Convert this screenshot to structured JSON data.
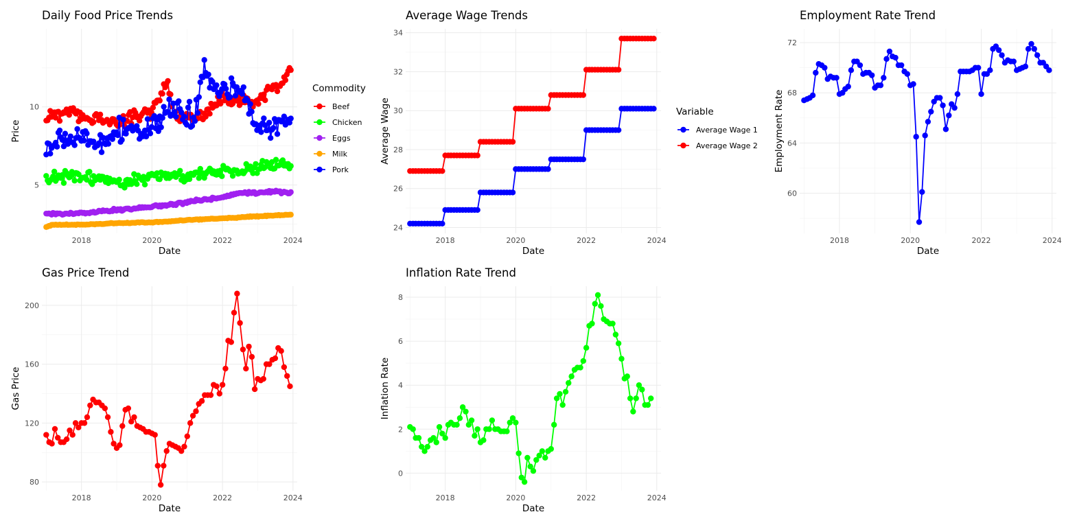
{
  "chart_data": [
    {
      "id": "food",
      "type": "line",
      "title": "Daily Food Price Trends",
      "xlabel": "Date",
      "ylabel": "Price",
      "x_axis": "date",
      "xlim": [
        "2016-11-17",
        "2024-02-14"
      ],
      "ylim": [
        1.9,
        15.0
      ],
      "xticks": [
        "2018",
        "2020",
        "2022",
        "2024"
      ],
      "yticks": [
        5,
        10
      ],
      "grid": true,
      "legend": {
        "title": "Commodity",
        "position": "right"
      },
      "series": [
        {
          "name": "Beef",
          "color": "#ff0000",
          "anchors": [
            [
              "2017-01-01",
              9.2
            ],
            [
              "2017-04-01",
              9.6
            ],
            [
              "2017-07-01",
              9.4
            ],
            [
              "2017-10-01",
              9.9
            ],
            [
              "2018-01-01",
              9.3
            ],
            [
              "2018-04-01",
              9.1
            ],
            [
              "2018-07-01",
              9.4
            ],
            [
              "2018-10-01",
              9.0
            ],
            [
              "2019-01-01",
              9.0
            ],
            [
              "2019-04-01",
              9.2
            ],
            [
              "2019-07-01",
              9.4
            ],
            [
              "2019-10-01",
              9.6
            ],
            [
              "2020-01-01",
              9.8
            ],
            [
              "2020-04-01",
              10.6
            ],
            [
              "2020-06-01",
              11.8
            ],
            [
              "2020-08-01",
              10.0
            ],
            [
              "2020-10-01",
              9.3
            ],
            [
              "2021-01-01",
              9.4
            ],
            [
              "2021-04-01",
              9.3
            ],
            [
              "2021-07-01",
              9.5
            ],
            [
              "2021-10-01",
              10.0
            ],
            [
              "2022-01-01",
              10.5
            ],
            [
              "2022-04-01",
              10.2
            ],
            [
              "2022-07-01",
              10.6
            ],
            [
              "2022-10-01",
              10.3
            ],
            [
              "2023-01-01",
              10.4
            ],
            [
              "2023-04-01",
              10.9
            ],
            [
              "2023-07-01",
              11.2
            ],
            [
              "2023-10-01",
              11.6
            ],
            [
              "2023-12-15",
              12.7
            ]
          ],
          "noise": 0.28,
          "seed": 11
        },
        {
          "name": "Chicken",
          "color": "#00ff00",
          "anchors": [
            [
              "2017-01-01",
              5.2
            ],
            [
              "2017-07-01",
              5.6
            ],
            [
              "2018-01-01",
              5.5
            ],
            [
              "2018-07-01",
              5.4
            ],
            [
              "2019-01-01",
              5.3
            ],
            [
              "2019-07-01",
              5.3
            ],
            [
              "2020-01-01",
              5.5
            ],
            [
              "2020-07-01",
              5.6
            ],
            [
              "2021-01-01",
              5.6
            ],
            [
              "2021-07-01",
              5.8
            ],
            [
              "2022-01-01",
              5.9
            ],
            [
              "2022-07-01",
              5.9
            ],
            [
              "2023-01-01",
              6.2
            ],
            [
              "2023-07-01",
              6.4
            ],
            [
              "2023-12-15",
              6.3
            ]
          ],
          "noise": 0.28,
          "seed": 23
        },
        {
          "name": "Eggs",
          "color": "#a020f0",
          "anchors": [
            [
              "2017-01-01",
              3.1
            ],
            [
              "2018-01-01",
              3.2
            ],
            [
              "2019-01-01",
              3.4
            ],
            [
              "2020-01-01",
              3.6
            ],
            [
              "2021-01-01",
              3.9
            ],
            [
              "2022-01-01",
              4.2
            ],
            [
              "2022-07-01",
              4.5
            ],
            [
              "2023-01-01",
              4.5
            ],
            [
              "2023-07-01",
              4.6
            ],
            [
              "2023-12-15",
              4.5
            ]
          ],
          "noise": 0.06,
          "seed": 37
        },
        {
          "name": "Milk",
          "color": "#ffa500",
          "anchors": [
            [
              "2017-01-01",
              2.3
            ],
            [
              "2017-03-01",
              2.45
            ],
            [
              "2018-01-01",
              2.45
            ],
            [
              "2019-01-01",
              2.55
            ],
            [
              "2020-01-01",
              2.6
            ],
            [
              "2021-01-01",
              2.75
            ],
            [
              "2022-01-01",
              2.85
            ],
            [
              "2023-01-01",
              3.0
            ],
            [
              "2023-12-15",
              3.1
            ]
          ],
          "noise": 0.02,
          "seed": 41
        },
        {
          "name": "Pork",
          "color": "#0000ff",
          "anchors": [
            [
              "2017-01-01",
              7.4
            ],
            [
              "2017-04-01",
              7.8
            ],
            [
              "2017-07-01",
              8.1
            ],
            [
              "2017-10-01",
              7.6
            ],
            [
              "2018-01-01",
              8.1
            ],
            [
              "2018-04-01",
              7.9
            ],
            [
              "2018-07-01",
              7.6
            ],
            [
              "2018-10-01",
              8.0
            ],
            [
              "2019-01-01",
              8.5
            ],
            [
              "2019-04-01",
              8.3
            ],
            [
              "2019-07-01",
              8.6
            ],
            [
              "2019-10-01",
              8.3
            ],
            [
              "2020-01-01",
              8.7
            ],
            [
              "2020-04-01",
              9.4
            ],
            [
              "2020-07-01",
              9.8
            ],
            [
              "2020-10-01",
              9.7
            ],
            [
              "2021-01-01",
              9.4
            ],
            [
              "2021-04-01",
              9.7
            ],
            [
              "2021-07-01",
              12.5
            ],
            [
              "2021-10-01",
              11.0
            ],
            [
              "2022-01-01",
              10.9
            ],
            [
              "2022-04-01",
              11.2
            ],
            [
              "2022-07-01",
              11.1
            ],
            [
              "2022-10-01",
              10.0
            ],
            [
              "2023-01-01",
              8.8
            ],
            [
              "2023-04-01",
              8.6
            ],
            [
              "2023-07-01",
              8.8
            ],
            [
              "2023-10-01",
              9.0
            ],
            [
              "2023-12-15",
              9.7
            ]
          ],
          "noise": 0.5,
          "seed": 53
        }
      ]
    },
    {
      "id": "wage",
      "type": "line",
      "title": "Average Wage Trends",
      "xlabel": "Date",
      "ylabel": "Average Wage",
      "x_axis": "date",
      "xlim": [
        "2016-11-17",
        "2024-02-14"
      ],
      "ylim": [
        23.7,
        34.2
      ],
      "xticks": [
        "2018",
        "2020",
        "2022",
        "2024"
      ],
      "yticks": [
        24,
        26,
        28,
        30,
        32,
        34
      ],
      "grid": true,
      "legend": {
        "title": "Variable",
        "position": "right"
      },
      "series": [
        {
          "name": "Average Wage 1",
          "color": "#0000ff",
          "steps": [
            24.2,
            24.9,
            25.8,
            27.0,
            27.5,
            29.0,
            30.1
          ]
        },
        {
          "name": "Average Wage 2",
          "color": "#ff0000",
          "steps": [
            26.9,
            27.7,
            28.4,
            30.1,
            30.8,
            32.1,
            33.7
          ]
        }
      ]
    },
    {
      "id": "employment",
      "type": "line",
      "title": "Employment Rate Trend",
      "xlabel": "Date",
      "ylabel": "Employment Rate",
      "x_axis": "date",
      "xlim": [
        "2016-11-17",
        "2024-02-14"
      ],
      "ylim": [
        56.8,
        73.1
      ],
      "xticks": [
        "2018",
        "2020",
        "2022",
        "2024"
      ],
      "yticks": [
        60,
        64,
        68,
        72
      ],
      "grid": true,
      "series": [
        {
          "name": "",
          "color": "#0000ff",
          "values": [
            67.4,
            67.5,
            67.6,
            67.8,
            69.6,
            70.3,
            70.2,
            70.0,
            69.1,
            69.3,
            69.2,
            69.2,
            67.9,
            68.0,
            68.3,
            68.5,
            69.8,
            70.5,
            70.5,
            70.2,
            69.5,
            69.6,
            69.6,
            69.4,
            68.4,
            68.6,
            68.6,
            69.2,
            70.7,
            71.3,
            70.9,
            70.8,
            70.2,
            70.2,
            69.7,
            69.5,
            68.6,
            68.7,
            64.5,
            57.7,
            60.1,
            64.6,
            65.7,
            66.5,
            67.3,
            67.6,
            67.6,
            67.0,
            65.1,
            66.2,
            67.1,
            66.8,
            67.9,
            69.7,
            69.7,
            69.7,
            69.7,
            69.8,
            70.0,
            70.0,
            67.9,
            69.5,
            69.5,
            69.8,
            71.5,
            71.7,
            71.4,
            71.0,
            70.4,
            70.6,
            70.5,
            70.5,
            69.8,
            69.9,
            70.0,
            70.1,
            71.5,
            71.9,
            71.5,
            71.0,
            70.4,
            70.4,
            70.1,
            69.8
          ]
        }
      ]
    },
    {
      "id": "gas",
      "type": "line",
      "title": "Gas Price Trend",
      "xlabel": "Date",
      "ylabel": "Gas Price",
      "x_axis": "date",
      "xlim": [
        "2016-11-17",
        "2024-02-14"
      ],
      "ylim": [
        74,
        213
      ],
      "xticks": [
        "2018",
        "2020",
        "2022",
        "2024"
      ],
      "yticks": [
        80,
        120,
        160,
        200
      ],
      "grid": true,
      "series": [
        {
          "name": "",
          "color": "#ff0000",
          "values": [
            112,
            107,
            106,
            116,
            110,
            107,
            107,
            109,
            115,
            112,
            120,
            117,
            120,
            120,
            124,
            132,
            136,
            134,
            134,
            132,
            130,
            124,
            114,
            106,
            103,
            105,
            118,
            129,
            130,
            121,
            124,
            118,
            117,
            116,
            114,
            114,
            113,
            112,
            91,
            78,
            91,
            101,
            106,
            105,
            104,
            103,
            101,
            104,
            111,
            120,
            125,
            128,
            133,
            135,
            139,
            139,
            139,
            146,
            145,
            140,
            146,
            157,
            176,
            175,
            195,
            208,
            188,
            170,
            157,
            172,
            165,
            143,
            150,
            149,
            150,
            160,
            160,
            163,
            164,
            171,
            169,
            158,
            152,
            145
          ]
        }
      ]
    },
    {
      "id": "inflation",
      "type": "line",
      "title": "Inflation Rate Trend",
      "xlabel": "Date",
      "ylabel": "Inflation Rate",
      "x_axis": "date",
      "xlim": [
        "2016-11-17",
        "2024-02-14"
      ],
      "ylim": [
        -0.8,
        8.5
      ],
      "xticks": [
        "2018",
        "2020",
        "2022",
        "2024"
      ],
      "yticks": [
        0,
        2,
        4,
        6,
        8
      ],
      "grid": true,
      "series": [
        {
          "name": "",
          "color": "#00ff00",
          "values": [
            2.1,
            2.0,
            1.6,
            1.6,
            1.2,
            1.0,
            1.2,
            1.5,
            1.6,
            1.4,
            2.1,
            1.8,
            1.6,
            2.2,
            2.3,
            2.2,
            2.2,
            2.5,
            3.0,
            2.8,
            2.2,
            2.4,
            1.7,
            2.0,
            1.4,
            1.5,
            2.0,
            2.0,
            2.4,
            2.0,
            2.0,
            1.9,
            1.9,
            1.9,
            2.3,
            2.5,
            2.3,
            0.9,
            -0.2,
            -0.4,
            0.7,
            0.3,
            0.1,
            0.6,
            0.8,
            1.0,
            0.7,
            1.0,
            1.1,
            2.2,
            3.4,
            3.6,
            3.1,
            3.7,
            4.1,
            4.4,
            4.7,
            4.8,
            4.8,
            5.1,
            5.7,
            6.7,
            6.8,
            7.7,
            8.1,
            7.6,
            7.0,
            6.9,
            6.8,
            6.8,
            6.3,
            5.9,
            5.2,
            4.3,
            4.4,
            3.4,
            2.8,
            3.4,
            4.0,
            3.8,
            3.1,
            3.1,
            3.4
          ]
        }
      ]
    }
  ]
}
